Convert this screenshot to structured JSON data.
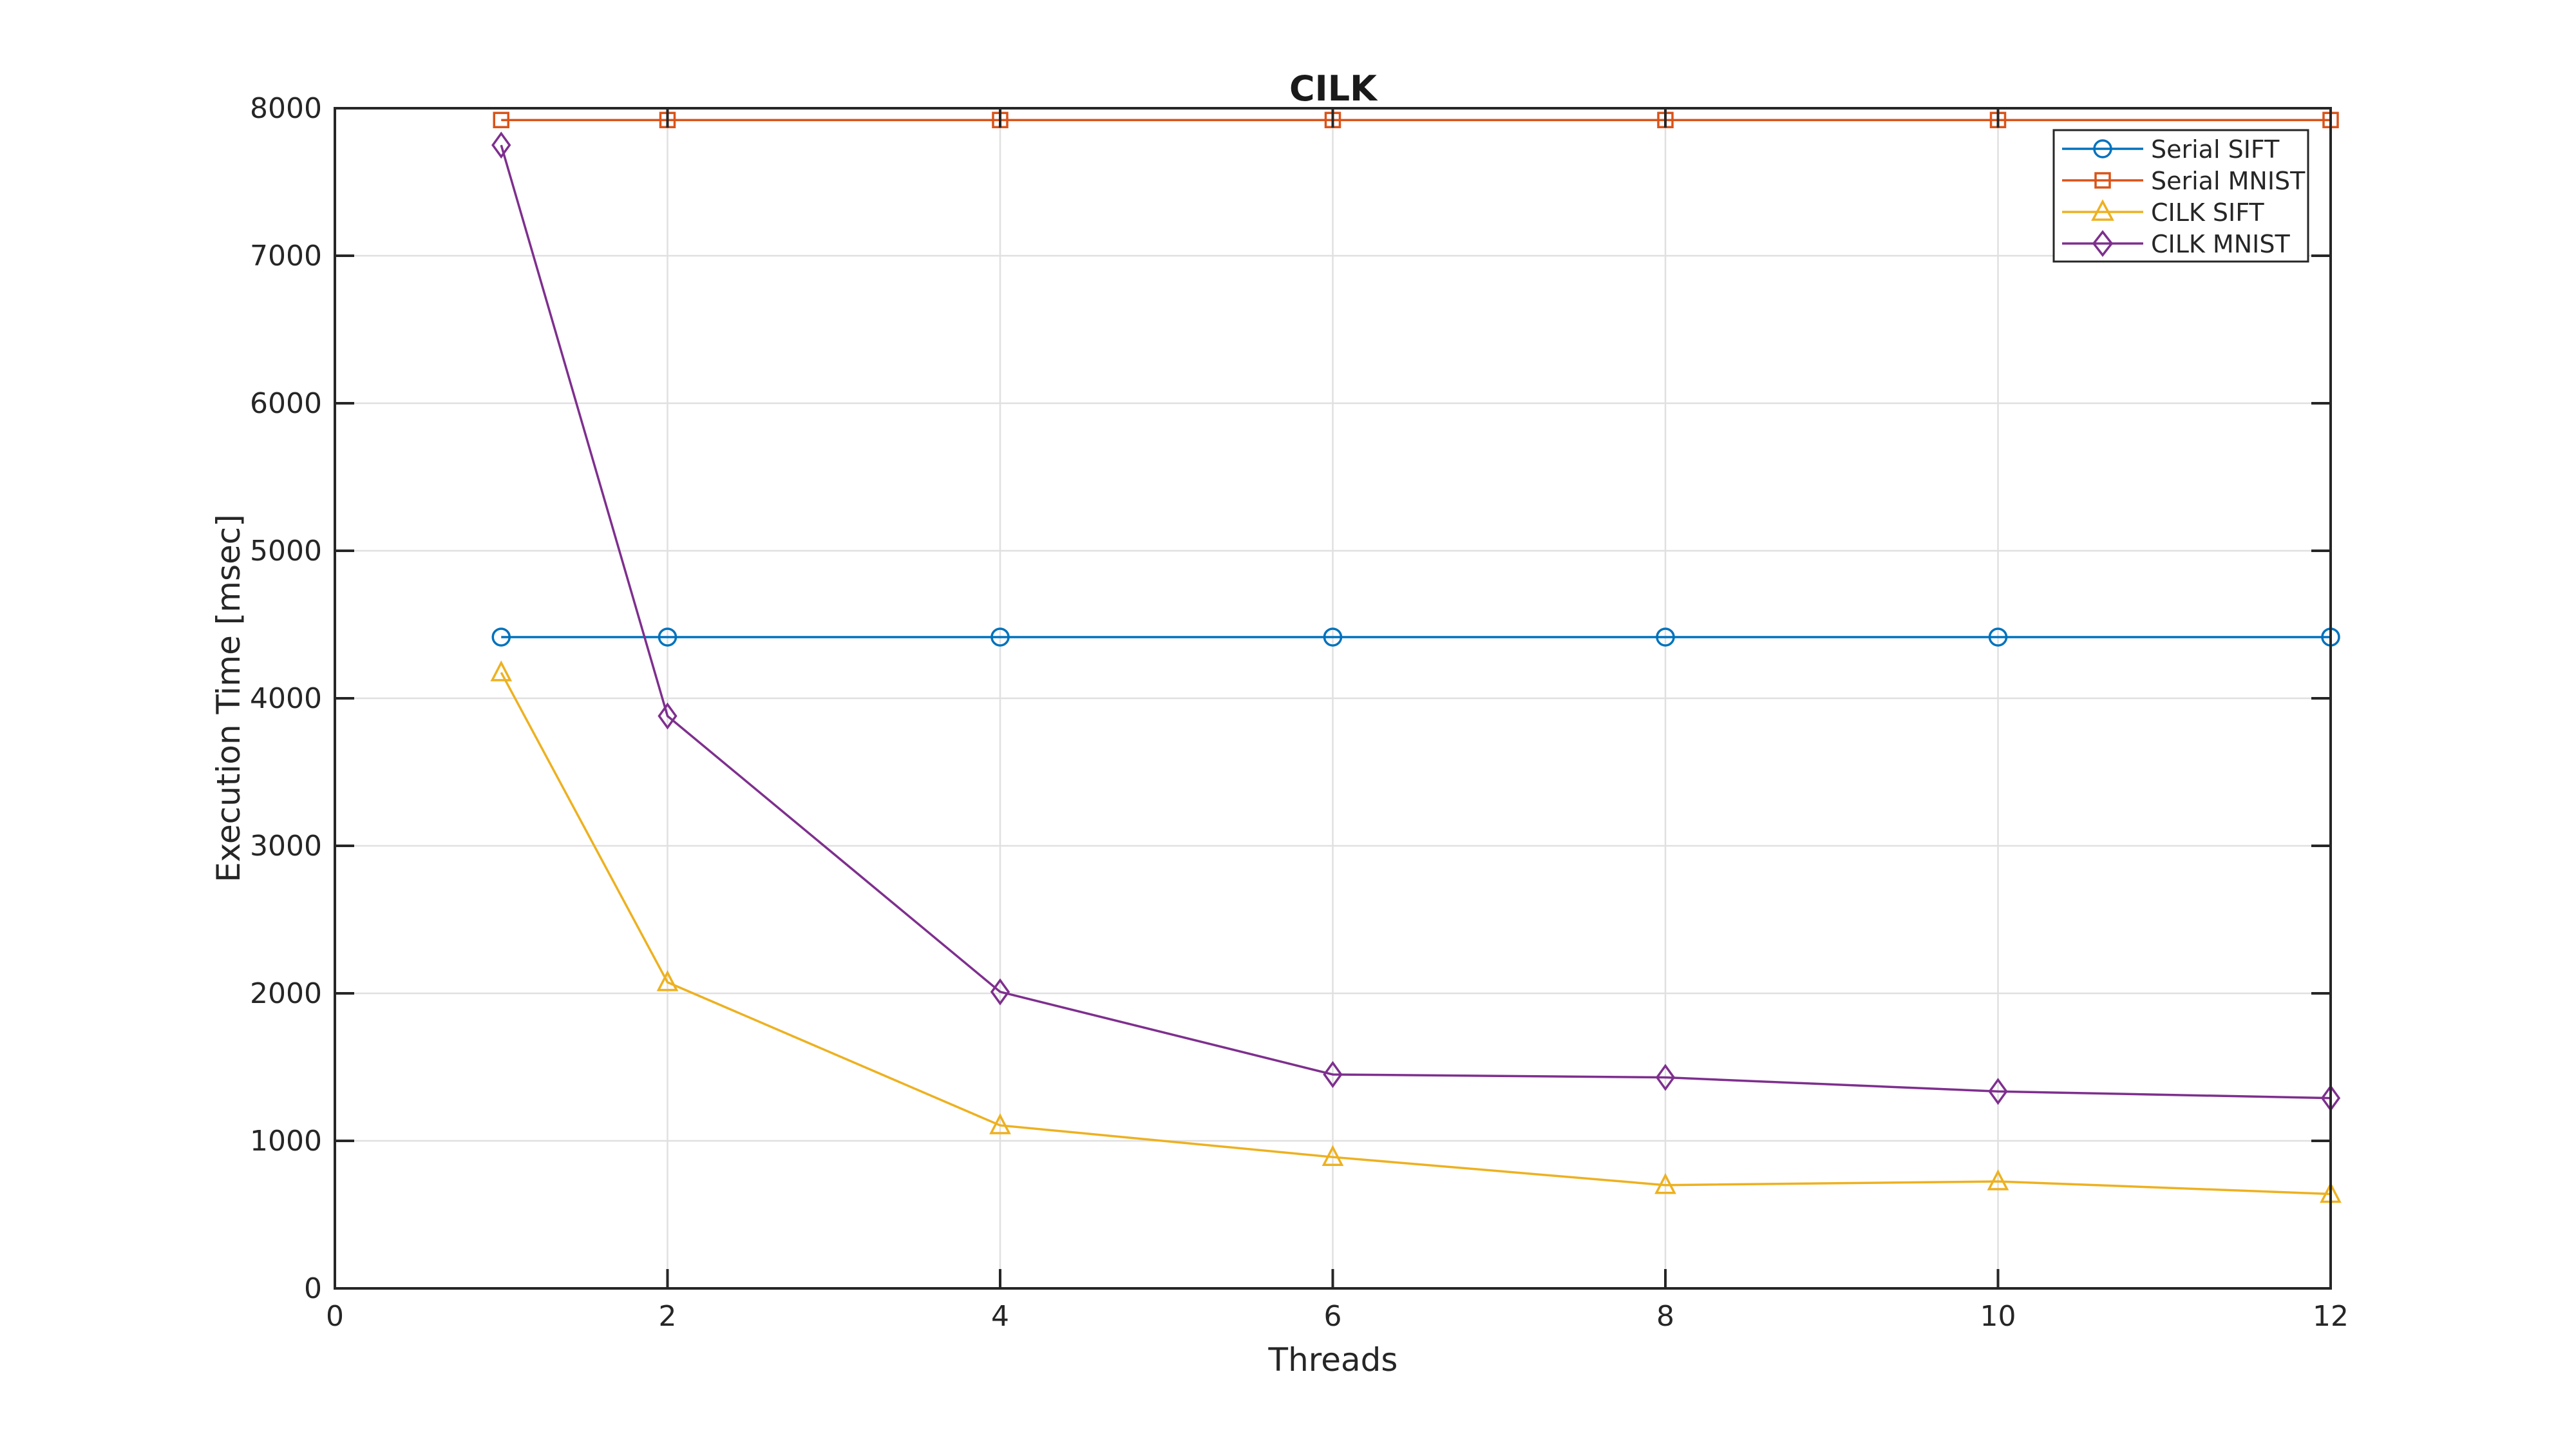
{
  "figure": {
    "background": "#FFFFFF"
  },
  "chart_data": {
    "type": "line",
    "title": "CILK",
    "xlabel": "Threads",
    "ylabel": "Execution Time [msec]",
    "xlim": [
      0,
      12
    ],
    "ylim": [
      0,
      8000
    ],
    "xticks": [
      0,
      2,
      4,
      6,
      8,
      10,
      12
    ],
    "yticks": [
      0,
      1000,
      2000,
      3000,
      4000,
      5000,
      6000,
      7000,
      8000
    ],
    "grid": true,
    "legend_position": "top-right",
    "x": [
      1,
      2,
      4,
      6,
      8,
      10,
      12
    ],
    "series": [
      {
        "name": "Serial SIFT",
        "color": "#0072BD",
        "marker": "circle",
        "values": [
          4415,
          4415,
          4415,
          4415,
          4415,
          4415,
          4415
        ]
      },
      {
        "name": "Serial MNIST",
        "color": "#D95319",
        "marker": "square",
        "values": [
          7920,
          7920,
          7920,
          7920,
          7920,
          7920,
          7920
        ]
      },
      {
        "name": "CILK SIFT",
        "color": "#EDB120",
        "marker": "triangle",
        "values": [
          4175,
          2075,
          1105,
          890,
          700,
          725,
          640
        ]
      },
      {
        "name": "CILK MNIST",
        "color": "#7E2F8E",
        "marker": "diamond",
        "values": [
          7750,
          3880,
          2010,
          1450,
          1430,
          1335,
          1290
        ]
      }
    ],
    "colors": {
      "axis": "#262626",
      "grid": "#E0E0E0",
      "plot_background": "#FFFFFF",
      "legend_border": "#262626",
      "legend_background": "#FFFFFF"
    }
  }
}
